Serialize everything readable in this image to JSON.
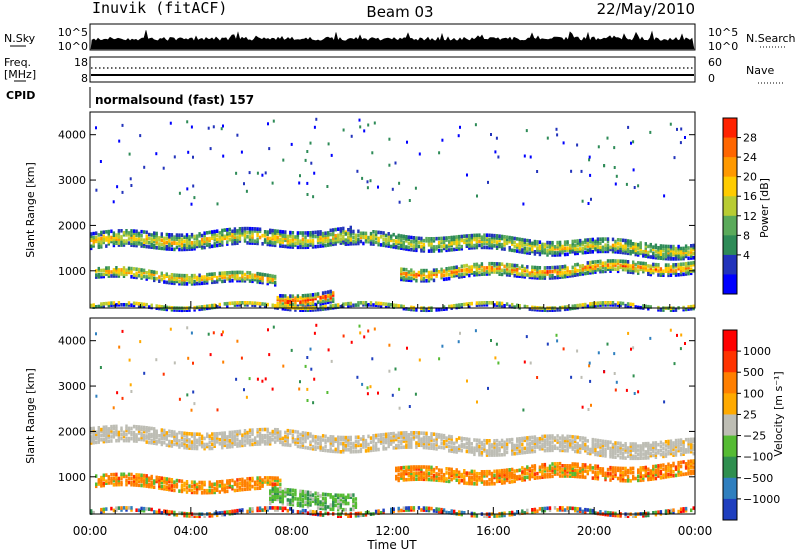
{
  "header": {
    "station": "Inuvik (fitACF)",
    "beam": "Beam 03",
    "date": "22/May/2010"
  },
  "nsky_panel": {
    "left_label": "N.Sky",
    "right_label": "N.Search",
    "ticks_left": [
      "10^5",
      "10^0"
    ],
    "ticks_right": [
      "10^5",
      "10^0"
    ]
  },
  "freq_panel": {
    "left_label_1": "Freq.",
    "left_label_2": "[MHz]",
    "ticks_left": [
      "18",
      "8"
    ],
    "ticks_right": [
      "60",
      "0"
    ],
    "right_label": "Nave",
    "cpid_label": "CPID",
    "cpid_text": "normalsound (fast) 157"
  },
  "power_panel": {
    "ylabel": "Slant Range [km]",
    "cbar_label": "Power [dB]",
    "cbar_ticks": [
      "28",
      "24",
      "20",
      "16",
      "12",
      "8",
      "4"
    ]
  },
  "velocity_panel": {
    "ylabel": "Slant Range [km]",
    "cbar_label": "Velocity [m s⁻¹]",
    "cbar_ticks": [
      "1000",
      "500",
      "100",
      "25",
      "−25",
      "−100",
      "−500",
      "−1000"
    ]
  },
  "colors": {
    "power_scale": [
      "#0000ff",
      "#2233bb",
      "#2e8b57",
      "#5aaa5a",
      "#b8cc33",
      "#ffcc00",
      "#ff9900",
      "#ff6600",
      "#ff2200"
    ],
    "velocity_scale": [
      "#1f3fbf",
      "#2f7fbf",
      "#2f8f4f",
      "#55bb33",
      "#bdbdb4",
      "#ffaa00",
      "#ff7f00",
      "#ff3300",
      "#ff0000"
    ]
  },
  "chart_data": [
    {
      "type": "line",
      "title": "N.Sky / N.Search",
      "x": [
        "00:00",
        "04:00",
        "08:00",
        "12:00",
        "16:00",
        "20:00",
        "00:00"
      ],
      "yscale": "log",
      "ylim_left": [
        "10^0",
        "10^5"
      ],
      "ylim_right": [
        "10^0",
        "10^5"
      ]
    },
    {
      "type": "line",
      "title": "Freq. / Nave",
      "ylim_left": [
        8,
        18
      ],
      "ylim_right": [
        0,
        60
      ]
    },
    {
      "type": "heatmap",
      "quantity": "Power",
      "ylabel": "Slant Range [km]",
      "xlabel": "Time UT",
      "xticks": [
        "00:00",
        "04:00",
        "08:00",
        "12:00",
        "16:00",
        "20:00",
        "00:00"
      ],
      "yticks": [
        1000,
        2000,
        3000,
        4000
      ],
      "ylim": [
        180,
        4500
      ],
      "colorbar_ticks": [
        4,
        8,
        12,
        16,
        20,
        24,
        28
      ]
    },
    {
      "type": "heatmap",
      "quantity": "Velocity",
      "ylabel": "Slant Range [km]",
      "xlabel": "Time UT",
      "xticks": [
        "00:00",
        "04:00",
        "08:00",
        "12:00",
        "16:00",
        "20:00",
        "00:00"
      ],
      "yticks": [
        1000,
        2000,
        3000,
        4000
      ],
      "ylim": [
        180,
        4500
      ],
      "colorbar_ticks": [
        1000,
        500,
        100,
        25,
        -25,
        -100,
        -500,
        -1000
      ]
    }
  ],
  "xaxis": {
    "ticks": [
      "00:00",
      "04:00",
      "08:00",
      "12:00",
      "16:00",
      "20:00",
      "00:00"
    ],
    "label": "Time UT"
  }
}
